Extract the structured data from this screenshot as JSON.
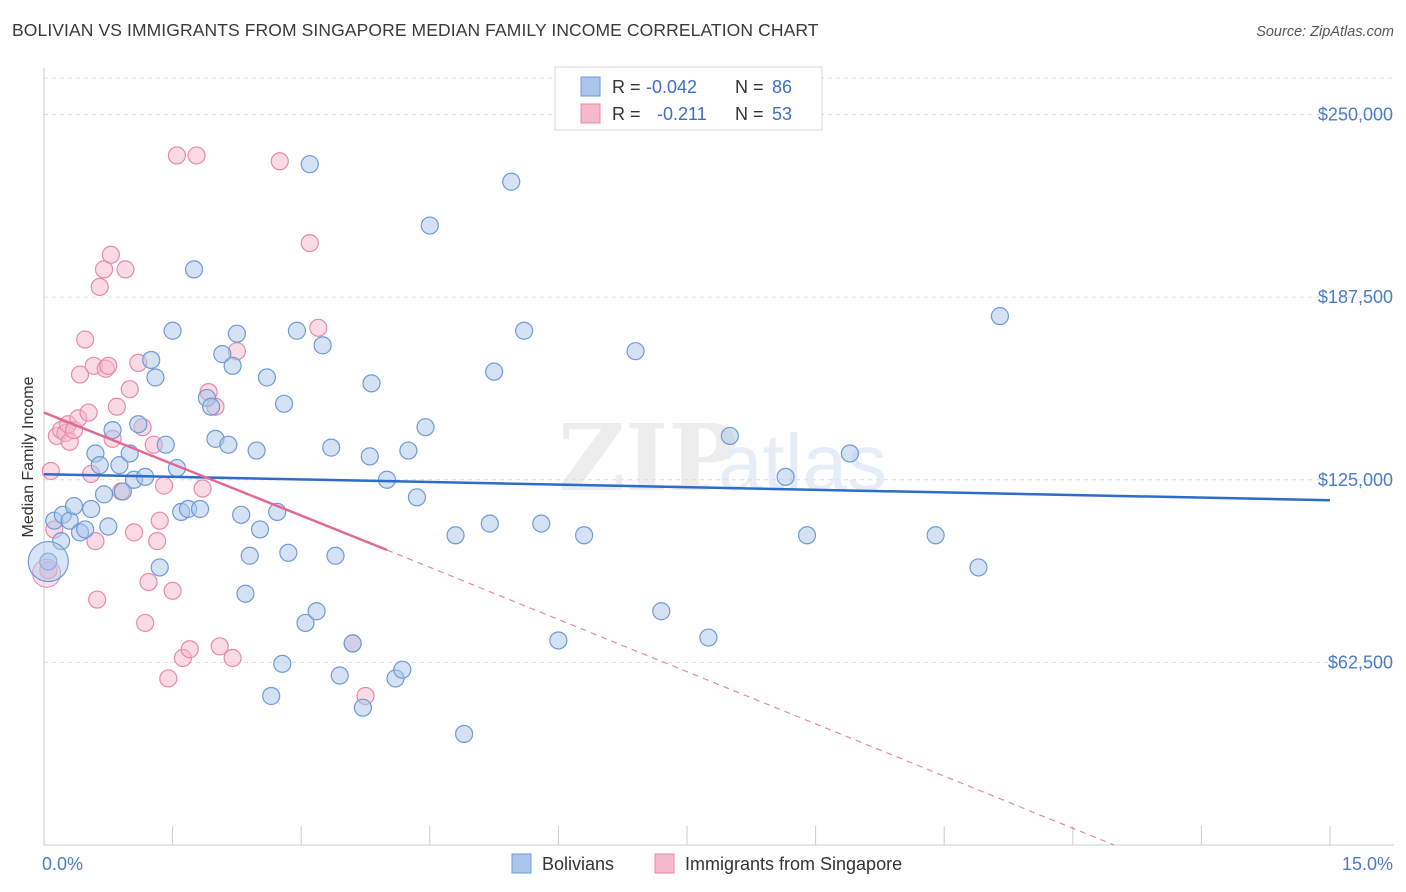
{
  "title": "BOLIVIAN VS IMMIGRANTS FROM SINGAPORE MEDIAN FAMILY INCOME CORRELATION CHART",
  "source": "Source: ZipAtlas.com",
  "watermark": {
    "zip": "ZIP",
    "atlas": "atlas"
  },
  "colors": {
    "blue_fill": "#aac6ea",
    "blue_stroke": "#6f9ad6",
    "blue_line": "#2d6cc8",
    "pink_fill": "#f6b8cc",
    "pink_stroke": "#e88aa8",
    "pink_line": "#e06a96",
    "tick_label": "#4a7cc6",
    "grid": "#d9dde3"
  },
  "legend": {
    "rows": [
      {
        "r_label": "R =",
        "r_value": "-0.042",
        "n_label": "N =",
        "n_value": "86",
        "series": "blue"
      },
      {
        "r_label": "R =",
        "r_value": "-0.211",
        "n_label": "N =",
        "n_value": "53",
        "series": "pink"
      }
    ]
  },
  "chart_data": {
    "type": "scatter",
    "title": "BOLIVIAN VS IMMIGRANTS FROM SINGAPORE MEDIAN FAMILY INCOME CORRELATION CHART",
    "xlabel": "",
    "ylabel": "Median Family Income",
    "xlim": [
      0,
      15
    ],
    "ylim": [
      0,
      262500
    ],
    "x_tick_labels": [
      "0.0%",
      "15.0%"
    ],
    "y_ticks": [
      62500,
      125000,
      187500,
      250000
    ],
    "y_tick_labels": [
      "$62,500",
      "$125,000",
      "$187,500",
      "$250,000"
    ],
    "grid": true,
    "legend_placement": "top-center",
    "series": [
      {
        "name": "Bolivians",
        "color": "blue",
        "r": -0.042,
        "n": 86,
        "trend": {
          "x": [
            0,
            15
          ],
          "y": [
            126900,
            118000
          ],
          "dashed_from": null
        },
        "points": [
          [
            0.05,
            97000
          ],
          [
            0.12,
            111000
          ],
          [
            0.2,
            104000
          ],
          [
            0.22,
            113000
          ],
          [
            0.3,
            111000
          ],
          [
            0.35,
            116000
          ],
          [
            0.42,
            107000
          ],
          [
            0.48,
            108000
          ],
          [
            0.55,
            115000
          ],
          [
            0.6,
            134000
          ],
          [
            0.65,
            130000
          ],
          [
            0.7,
            120000
          ],
          [
            0.75,
            109000
          ],
          [
            0.8,
            142000
          ],
          [
            0.88,
            130000
          ],
          [
            0.92,
            121000
          ],
          [
            1.0,
            134000
          ],
          [
            1.05,
            125000
          ],
          [
            1.1,
            144000
          ],
          [
            1.18,
            126000
          ],
          [
            1.25,
            166000
          ],
          [
            1.3,
            160000
          ],
          [
            1.35,
            95000
          ],
          [
            1.42,
            137000
          ],
          [
            1.5,
            176000
          ],
          [
            1.55,
            129000
          ],
          [
            1.6,
            114000
          ],
          [
            1.68,
            115000
          ],
          [
            1.75,
            197000
          ],
          [
            1.82,
            115000
          ],
          [
            1.9,
            153000
          ],
          [
            1.95,
            150000
          ],
          [
            2.0,
            139000
          ],
          [
            2.08,
            168000
          ],
          [
            2.15,
            137000
          ],
          [
            2.2,
            164000
          ],
          [
            2.25,
            175000
          ],
          [
            2.3,
            113000
          ],
          [
            2.35,
            86000
          ],
          [
            2.4,
            99000
          ],
          [
            2.48,
            135000
          ],
          [
            2.52,
            108000
          ],
          [
            2.6,
            160000
          ],
          [
            2.65,
            51000
          ],
          [
            2.72,
            114000
          ],
          [
            2.78,
            62000
          ],
          [
            2.8,
            151000
          ],
          [
            2.85,
            100000
          ],
          [
            2.95,
            176000
          ],
          [
            3.05,
            76000
          ],
          [
            3.1,
            233000
          ],
          [
            3.18,
            80000
          ],
          [
            3.25,
            171000
          ],
          [
            3.35,
            136000
          ],
          [
            3.4,
            99000
          ],
          [
            3.45,
            58000
          ],
          [
            3.6,
            69000
          ],
          [
            3.72,
            47000
          ],
          [
            3.8,
            133000
          ],
          [
            3.82,
            158000
          ],
          [
            4.0,
            125000
          ],
          [
            4.1,
            57000
          ],
          [
            4.18,
            60000
          ],
          [
            4.25,
            135000
          ],
          [
            4.35,
            119000
          ],
          [
            4.45,
            143000
          ],
          [
            4.5,
            212000
          ],
          [
            4.8,
            106000
          ],
          [
            4.9,
            38000
          ],
          [
            5.2,
            110000
          ],
          [
            5.25,
            162000
          ],
          [
            5.45,
            227000
          ],
          [
            5.6,
            176000
          ],
          [
            5.8,
            110000
          ],
          [
            6.0,
            70000
          ],
          [
            6.3,
            106000
          ],
          [
            6.9,
            169000
          ],
          [
            7.2,
            80000
          ],
          [
            7.75,
            71000
          ],
          [
            8.0,
            140000
          ],
          [
            8.65,
            126000
          ],
          [
            8.9,
            106000
          ],
          [
            9.4,
            134000
          ],
          [
            10.4,
            106000
          ],
          [
            10.9,
            95000
          ],
          [
            11.15,
            181000
          ]
        ]
      },
      {
        "name": "Immigrants from Singapore",
        "color": "pink",
        "r": -0.211,
        "n": 53,
        "trend": {
          "x": [
            0,
            4.0,
            15
          ],
          "y": [
            148000,
            101000,
            -30000
          ],
          "dashed_from": 4.0
        },
        "points": [
          [
            0.05,
            94000
          ],
          [
            0.08,
            128000
          ],
          [
            0.12,
            108000
          ],
          [
            0.15,
            140000
          ],
          [
            0.2,
            142000
          ],
          [
            0.25,
            141000
          ],
          [
            0.28,
            144000
          ],
          [
            0.3,
            138000
          ],
          [
            0.35,
            142000
          ],
          [
            0.4,
            146000
          ],
          [
            0.42,
            161000
          ],
          [
            0.48,
            173000
          ],
          [
            0.52,
            148000
          ],
          [
            0.55,
            127000
          ],
          [
            0.58,
            164000
          ],
          [
            0.6,
            104000
          ],
          [
            0.62,
            84000
          ],
          [
            0.65,
            191000
          ],
          [
            0.7,
            197000
          ],
          [
            0.72,
            163000
          ],
          [
            0.75,
            164000
          ],
          [
            0.78,
            202000
          ],
          [
            0.8,
            139000
          ],
          [
            0.85,
            150000
          ],
          [
            0.9,
            121000
          ],
          [
            0.95,
            197000
          ],
          [
            1.0,
            156000
          ],
          [
            1.05,
            107000
          ],
          [
            1.1,
            165000
          ],
          [
            1.15,
            143000
          ],
          [
            1.18,
            76000
          ],
          [
            1.22,
            90000
          ],
          [
            1.28,
            137000
          ],
          [
            1.32,
            104000
          ],
          [
            1.35,
            111000
          ],
          [
            1.4,
            123000
          ],
          [
            1.45,
            57000
          ],
          [
            1.5,
            87000
          ],
          [
            1.55,
            236000
          ],
          [
            1.62,
            64000
          ],
          [
            1.7,
            67000
          ],
          [
            1.78,
            236000
          ],
          [
            1.85,
            122000
          ],
          [
            1.92,
            155000
          ],
          [
            2.0,
            150000
          ],
          [
            2.05,
            68000
          ],
          [
            2.2,
            64000
          ],
          [
            2.75,
            234000
          ],
          [
            3.1,
            206000
          ],
          [
            3.2,
            177000
          ],
          [
            3.6,
            69000
          ],
          [
            3.75,
            51000
          ],
          [
            2.25,
            169000
          ]
        ]
      }
    ]
  },
  "bottom_legend": {
    "items": [
      {
        "label": "Bolivians",
        "series": "blue"
      },
      {
        "label": "Immigrants from Singapore",
        "series": "pink"
      }
    ]
  }
}
